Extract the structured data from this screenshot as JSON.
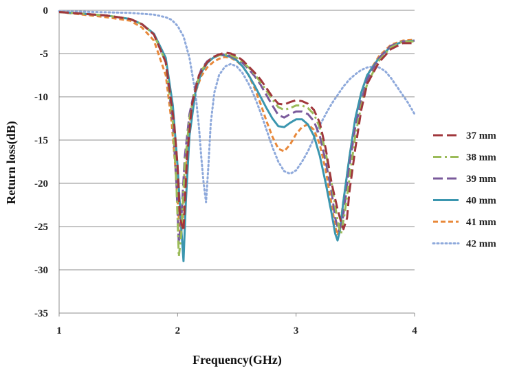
{
  "chart_data": {
    "type": "line",
    "title": "",
    "xlabel": "Frequency(GHz)",
    "ylabel": "Return loss(dB)",
    "xlim": [
      1,
      4
    ],
    "ylim": [
      -35,
      0
    ],
    "x_ticks": [
      "1",
      "2",
      "3",
      "4"
    ],
    "y_ticks": [
      "0",
      "-5",
      "-10",
      "-15",
      "-20",
      "-25",
      "-30",
      "-35"
    ],
    "grid": "horizontal",
    "legend_position": "right",
    "series": [
      {
        "name": "37 mm",
        "color": "#A0373C",
        "dash": "long-dash",
        "x": [
          1,
          1.2,
          1.4,
          1.6,
          1.7,
          1.8,
          1.9,
          1.97,
          2.0,
          2.02,
          2.05,
          2.08,
          2.12,
          2.18,
          2.25,
          2.3,
          2.35,
          2.4,
          2.45,
          2.5,
          2.55,
          2.6,
          2.65,
          2.7,
          2.75,
          2.8,
          2.85,
          2.9,
          2.95,
          3.0,
          3.05,
          3.1,
          3.15,
          3.2,
          3.25,
          3.3,
          3.35,
          3.38,
          3.4,
          3.43,
          3.45,
          3.5,
          3.55,
          3.6,
          3.7,
          3.8,
          3.9,
          4.0
        ],
        "y": [
          -0.2,
          -0.4,
          -0.6,
          -1.0,
          -1.6,
          -2.8,
          -6.0,
          -13.0,
          -18.0,
          -24.0,
          -25.5,
          -17.0,
          -11.0,
          -7.5,
          -6.0,
          -5.4,
          -5.1,
          -4.9,
          -5.0,
          -5.3,
          -5.8,
          -6.5,
          -7.2,
          -8.0,
          -9.0,
          -10.0,
          -10.8,
          -10.9,
          -10.6,
          -10.4,
          -10.5,
          -10.8,
          -11.5,
          -13.0,
          -16.0,
          -20.0,
          -23.0,
          -24.5,
          -25.3,
          -24.0,
          -21.0,
          -16.0,
          -11.5,
          -8.5,
          -6.0,
          -4.5,
          -3.8,
          -3.8
        ]
      },
      {
        "name": "38 mm",
        "color": "#9BBB59",
        "dash": "dash-dot",
        "x": [
          1,
          1.2,
          1.4,
          1.6,
          1.7,
          1.8,
          1.9,
          1.96,
          1.99,
          2.01,
          2.03,
          2.06,
          2.1,
          2.15,
          2.2,
          2.25,
          2.3,
          2.35,
          2.4,
          2.45,
          2.5,
          2.55,
          2.6,
          2.65,
          2.7,
          2.75,
          2.8,
          2.85,
          2.9,
          2.95,
          3.0,
          3.05,
          3.1,
          3.15,
          3.2,
          3.25,
          3.3,
          3.34,
          3.36,
          3.38,
          3.41,
          3.45,
          3.5,
          3.55,
          3.6,
          3.7,
          3.8,
          3.9,
          4.0
        ],
        "y": [
          -0.2,
          -0.4,
          -0.6,
          -1.0,
          -1.6,
          -2.8,
          -6.0,
          -13.0,
          -20.0,
          -28.5,
          -26.0,
          -18.0,
          -12.5,
          -9.0,
          -7.0,
          -6.0,
          -5.4,
          -5.2,
          -5.1,
          -5.2,
          -5.5,
          -6.0,
          -6.6,
          -7.4,
          -8.3,
          -9.3,
          -10.3,
          -11.2,
          -11.5,
          -11.3,
          -11.0,
          -11.0,
          -11.3,
          -12.0,
          -13.5,
          -16.5,
          -20.0,
          -23.5,
          -25.0,
          -25.8,
          -23.5,
          -19.5,
          -14.5,
          -11.0,
          -8.5,
          -5.8,
          -4.3,
          -3.6,
          -3.6
        ]
      },
      {
        "name": "39 mm",
        "color": "#7A5A9B",
        "dash": "long-dash",
        "x": [
          1,
          1.2,
          1.4,
          1.6,
          1.7,
          1.8,
          1.9,
          1.96,
          1.99,
          2.01,
          2.03,
          2.06,
          2.1,
          2.15,
          2.2,
          2.25,
          2.3,
          2.35,
          2.4,
          2.45,
          2.5,
          2.55,
          2.6,
          2.65,
          2.7,
          2.75,
          2.8,
          2.85,
          2.9,
          2.95,
          3.0,
          3.05,
          3.1,
          3.15,
          3.2,
          3.25,
          3.3,
          3.33,
          3.36,
          3.39,
          3.42,
          3.45,
          3.5,
          3.55,
          3.6,
          3.7,
          3.8,
          3.9,
          4.0
        ],
        "y": [
          -0.2,
          -0.4,
          -0.6,
          -1.0,
          -1.6,
          -2.8,
          -6.0,
          -13.0,
          -20.0,
          -27.0,
          -24.5,
          -17.0,
          -12.0,
          -8.8,
          -6.8,
          -5.9,
          -5.4,
          -5.2,
          -5.1,
          -5.3,
          -5.6,
          -6.1,
          -6.8,
          -7.6,
          -8.6,
          -9.8,
          -11.0,
          -12.1,
          -12.4,
          -12.0,
          -11.7,
          -11.7,
          -12.0,
          -12.8,
          -14.5,
          -17.5,
          -21.0,
          -24.0,
          -25.5,
          -24.5,
          -21.5,
          -18.0,
          -13.5,
          -10.5,
          -8.0,
          -5.5,
          -4.1,
          -3.6,
          -3.5
        ]
      },
      {
        "name": "40 mm",
        "color": "#3B96AF",
        "dash": "solid",
        "x": [
          1,
          1.2,
          1.4,
          1.6,
          1.7,
          1.8,
          1.9,
          1.96,
          2.0,
          2.03,
          2.05,
          2.07,
          2.1,
          2.15,
          2.2,
          2.25,
          2.3,
          2.35,
          2.4,
          2.45,
          2.5,
          2.55,
          2.6,
          2.65,
          2.7,
          2.75,
          2.8,
          2.85,
          2.9,
          2.95,
          3.0,
          3.05,
          3.1,
          3.15,
          3.2,
          3.25,
          3.3,
          3.33,
          3.35,
          3.37,
          3.4,
          3.45,
          3.5,
          3.55,
          3.6,
          3.7,
          3.8,
          3.9,
          4.0
        ],
        "y": [
          -0.2,
          -0.4,
          -0.6,
          -1.0,
          -1.6,
          -2.7,
          -5.5,
          -11.0,
          -18.0,
          -25.0,
          -29.0,
          -22.0,
          -14.5,
          -9.5,
          -7.2,
          -6.1,
          -5.5,
          -5.2,
          -5.2,
          -5.4,
          -5.8,
          -6.5,
          -7.5,
          -8.7,
          -10.0,
          -11.3,
          -12.5,
          -13.4,
          -13.5,
          -13.0,
          -12.6,
          -12.6,
          -13.2,
          -14.5,
          -16.8,
          -20.0,
          -23.5,
          -25.8,
          -26.6,
          -25.5,
          -22.0,
          -17.0,
          -12.5,
          -9.5,
          -7.5,
          -5.5,
          -4.2,
          -3.6,
          -3.5
        ]
      },
      {
        "name": "41 mm",
        "color": "#E8883A",
        "dash": "short-dash",
        "x": [
          1,
          1.2,
          1.4,
          1.6,
          1.7,
          1.8,
          1.9,
          1.95,
          1.98,
          2.0,
          2.02,
          2.04,
          2.07,
          2.1,
          2.15,
          2.2,
          2.25,
          2.3,
          2.35,
          2.4,
          2.45,
          2.5,
          2.55,
          2.6,
          2.65,
          2.7,
          2.75,
          2.8,
          2.85,
          2.9,
          2.95,
          3.0,
          3.05,
          3.1,
          3.15,
          3.2,
          3.25,
          3.3,
          3.33,
          3.35,
          3.37,
          3.4,
          3.45,
          3.5,
          3.55,
          3.6,
          3.7,
          3.8,
          3.9,
          4.0
        ],
        "y": [
          -0.2,
          -0.5,
          -0.8,
          -1.2,
          -2.0,
          -3.5,
          -7.5,
          -13.0,
          -18.0,
          -22.0,
          -26.0,
          -25.0,
          -18.5,
          -13.0,
          -9.5,
          -7.6,
          -6.6,
          -6.0,
          -5.6,
          -5.4,
          -5.5,
          -5.9,
          -6.5,
          -7.5,
          -9.0,
          -10.8,
          -12.8,
          -14.6,
          -16.0,
          -16.3,
          -15.5,
          -14.3,
          -13.5,
          -13.2,
          -13.8,
          -15.5,
          -18.5,
          -22.5,
          -25.0,
          -26.0,
          -25.0,
          -22.0,
          -17.0,
          -12.5,
          -9.5,
          -7.5,
          -5.3,
          -4.0,
          -3.5,
          -3.4
        ]
      },
      {
        "name": "42 mm",
        "color": "#8EA9DB",
        "dash": "dotted",
        "x": [
          1,
          1.3,
          1.6,
          1.8,
          1.9,
          1.95,
          2.0,
          2.05,
          2.1,
          2.15,
          2.18,
          2.2,
          2.22,
          2.24,
          2.26,
          2.28,
          2.31,
          2.35,
          2.4,
          2.45,
          2.5,
          2.55,
          2.6,
          2.65,
          2.7,
          2.75,
          2.8,
          2.85,
          2.9,
          2.95,
          3.0,
          3.05,
          3.1,
          3.15,
          3.2,
          3.25,
          3.3,
          3.35,
          3.4,
          3.45,
          3.5,
          3.55,
          3.6,
          3.65,
          3.7,
          3.75,
          3.8,
          3.85,
          3.9,
          3.95,
          4.0
        ],
        "y": [
          -0.1,
          -0.2,
          -0.3,
          -0.5,
          -0.8,
          -1.1,
          -1.8,
          -3.0,
          -5.5,
          -9.5,
          -13.5,
          -17.0,
          -20.0,
          -22.2,
          -18.0,
          -13.0,
          -9.5,
          -7.5,
          -6.5,
          -6.2,
          -6.5,
          -7.3,
          -8.5,
          -10.0,
          -11.8,
          -13.8,
          -15.8,
          -17.5,
          -18.6,
          -18.9,
          -18.5,
          -17.5,
          -16.3,
          -14.8,
          -13.3,
          -12.0,
          -10.8,
          -9.8,
          -8.8,
          -8.0,
          -7.4,
          -6.9,
          -6.6,
          -6.5,
          -6.6,
          -7.0,
          -7.8,
          -8.8,
          -9.8,
          -10.8,
          -12.0
        ]
      }
    ]
  }
}
